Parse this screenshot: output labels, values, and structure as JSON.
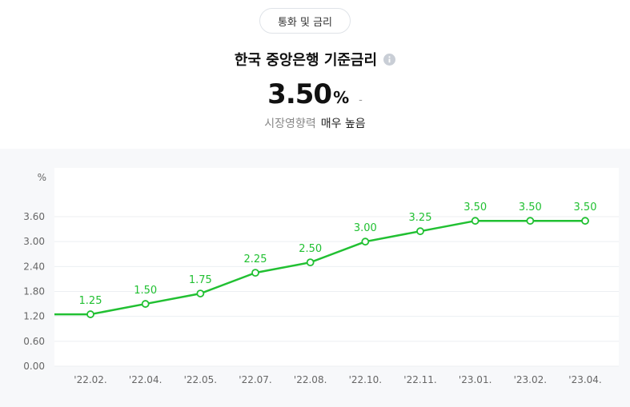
{
  "header": {
    "category_chip": "통화 및 금리"
  },
  "indicator": {
    "title": "한국 중앙은행 기준금리",
    "info_icon": "info-circle-icon",
    "value": "3.50",
    "unit": "%",
    "change": "-",
    "impact_label": "시장영향력",
    "impact_value": "매우 높음"
  },
  "colors": {
    "line": "#21c032",
    "point_fill": "#ffffff",
    "grid": "#eceff2",
    "tick_text": "#666666"
  },
  "chart_data": {
    "type": "line",
    "ylabel": "%",
    "ylim": [
      0,
      3.6
    ],
    "yticks": [
      "0.00",
      "0.60",
      "1.20",
      "1.80",
      "2.40",
      "3.00",
      "3.60"
    ],
    "categories": [
      "'22.02.",
      "'22.04.",
      "'22.05.",
      "'22.07.",
      "'22.08.",
      "'22.10.",
      "'22.11.",
      "'23.01.",
      "'23.02.",
      "'23.04."
    ],
    "values": [
      1.25,
      1.5,
      1.75,
      2.25,
      2.5,
      3.0,
      3.25,
      3.5,
      3.5,
      3.5
    ],
    "data_labels": [
      "1.25",
      "1.50",
      "1.75",
      "2.25",
      "2.50",
      "3.00",
      "3.25",
      "3.50",
      "3.50",
      "3.50"
    ],
    "leading_value": 1.25,
    "grid": true
  }
}
